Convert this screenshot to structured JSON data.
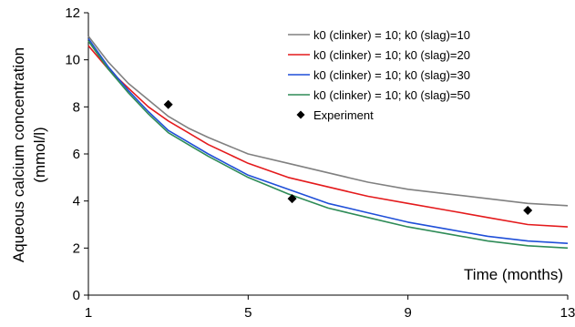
{
  "chart_data": {
    "type": "line",
    "xlabel": "Time (months)",
    "ylabel_line1": "Aqueous calcium concentration",
    "ylabel_line2": "(mmol/l)",
    "xlim": [
      1,
      13
    ],
    "ylim": [
      0,
      12
    ],
    "xticks": [
      1,
      5,
      9,
      13
    ],
    "yticks": [
      0,
      2,
      4,
      6,
      8,
      10,
      12
    ],
    "grid": false,
    "legend_position": "top-right",
    "series": [
      {
        "name": "k0 (clinker) = 10; k0 (slag)=10",
        "color": "#808080",
        "x": [
          1,
          1.5,
          2,
          2.5,
          3,
          3.5,
          4,
          5,
          6,
          7,
          8,
          9,
          10,
          11,
          12,
          13
        ],
        "y": [
          11.0,
          9.9,
          9.0,
          8.3,
          7.6,
          7.1,
          6.7,
          6.0,
          5.6,
          5.2,
          4.8,
          4.5,
          4.3,
          4.1,
          3.9,
          3.8
        ]
      },
      {
        "name": "k0 (clinker) = 10; k0 (slag)=20",
        "color": "#e41a1c",
        "x": [
          1,
          1.5,
          2,
          2.5,
          3,
          3.5,
          4,
          5,
          6,
          7,
          8,
          9,
          10,
          11,
          12,
          13
        ],
        "y": [
          10.6,
          9.6,
          8.8,
          8.0,
          7.4,
          6.9,
          6.4,
          5.6,
          5.0,
          4.6,
          4.2,
          3.9,
          3.6,
          3.3,
          3.0,
          2.9
        ]
      },
      {
        "name": "k0 (clinker) = 10; k0 (slag)=30",
        "color": "#1f4fd8",
        "x": [
          1,
          1.5,
          2,
          2.5,
          3,
          3.5,
          4,
          5,
          6,
          7,
          8,
          9,
          10,
          11,
          12,
          13
        ],
        "y": [
          10.9,
          9.7,
          8.7,
          7.8,
          7.0,
          6.5,
          6.0,
          5.1,
          4.5,
          3.9,
          3.5,
          3.1,
          2.8,
          2.5,
          2.3,
          2.2
        ]
      },
      {
        "name": "k0 (clinker) = 10; k0 (slag)=50",
        "color": "#2e8b57",
        "x": [
          1,
          1.5,
          2,
          2.5,
          3,
          3.5,
          4,
          5,
          6,
          7,
          8,
          9,
          10,
          11,
          12,
          13
        ],
        "y": [
          10.8,
          9.6,
          8.6,
          7.7,
          6.9,
          6.4,
          5.9,
          5.0,
          4.3,
          3.7,
          3.3,
          2.9,
          2.6,
          2.3,
          2.1,
          2.0
        ]
      }
    ],
    "experiment": {
      "name": "Experiment",
      "marker": "diamond",
      "color": "#000000",
      "points": [
        {
          "x": 3,
          "y": 8.1
        },
        {
          "x": 6.1,
          "y": 4.1
        },
        {
          "x": 12,
          "y": 3.6
        }
      ]
    }
  }
}
